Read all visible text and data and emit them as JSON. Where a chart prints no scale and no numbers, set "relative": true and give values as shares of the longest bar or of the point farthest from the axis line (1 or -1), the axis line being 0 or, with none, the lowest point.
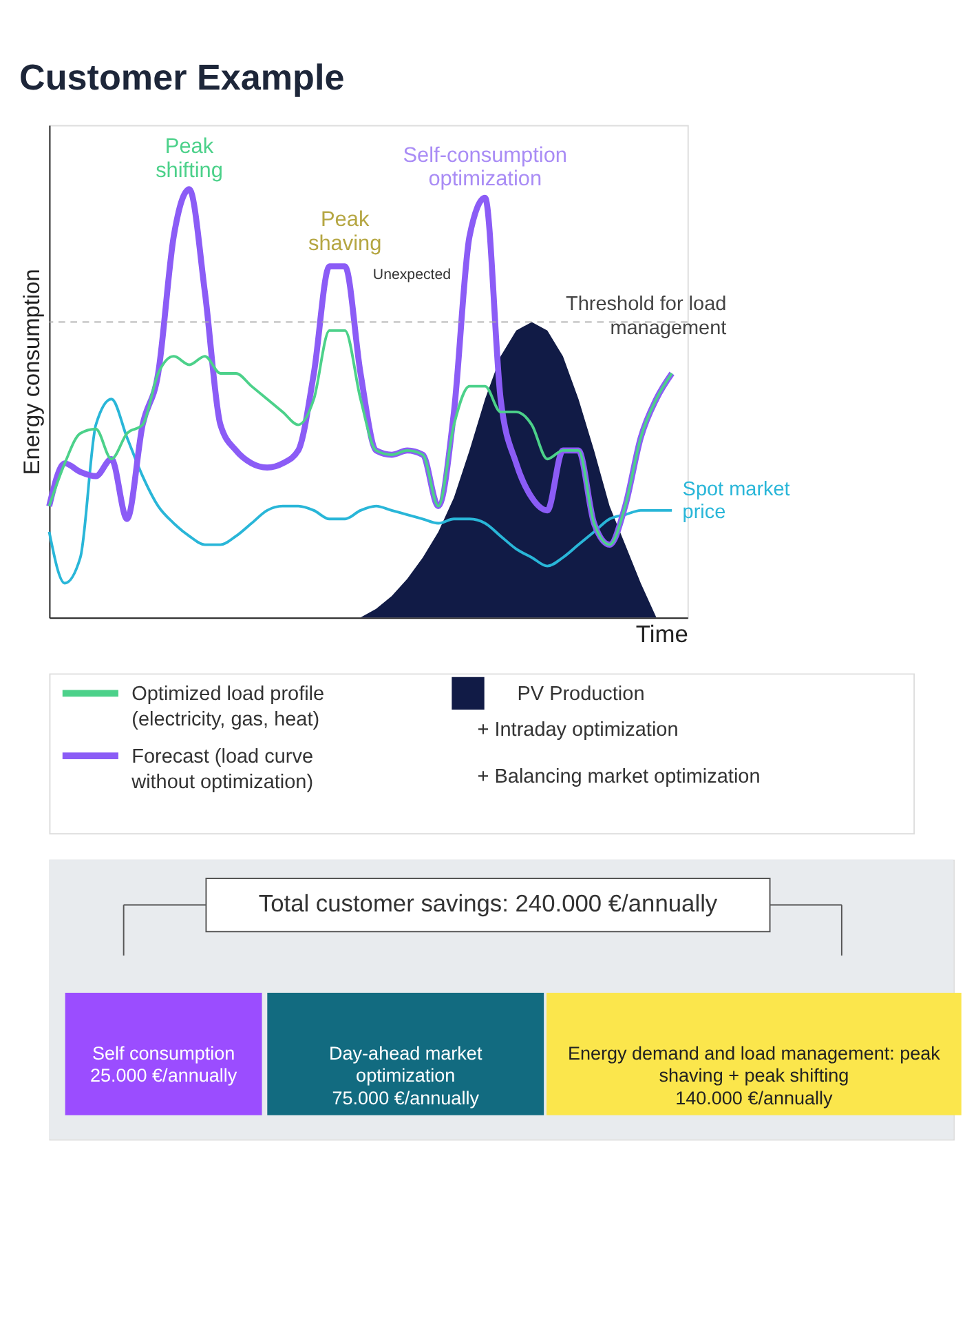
{
  "chart_data": [
    {
      "type": "line",
      "title": "Customer Example",
      "xlabel": "Time",
      "ylabel": "Energy consumption",
      "relative": true,
      "tick_labels": false,
      "grid": false,
      "legend": "bottom",
      "marker": "none",
      "line_style": "solid",
      "categories": [
        null,
        null,
        null,
        null,
        null,
        null,
        null,
        null,
        null,
        null,
        null,
        null,
        null,
        null,
        null,
        null,
        null,
        null,
        null,
        null,
        null,
        null,
        null,
        null,
        null,
        null,
        null,
        null,
        null,
        null,
        null,
        null,
        null,
        null,
        null,
        null,
        null,
        null,
        null,
        null,
        null
      ],
      "series": [
        {
          "name": "PV Production",
          "type": "area",
          "color": "#111b46",
          "values": [
            null,
            null,
            null,
            null,
            null,
            null,
            null,
            null,
            null,
            null,
            null,
            null,
            null,
            null,
            null,
            null,
            null,
            null,
            null,
            null,
            0,
            0.02,
            0.05,
            0.09,
            0.14,
            0.2,
            0.28,
            0.39,
            0.51,
            0.61,
            0.67,
            0.69,
            0.67,
            0.61,
            0.51,
            0.39,
            0.26,
            0.17,
            0.08,
            0,
            null
          ]
        },
        {
          "name": "Spot market price",
          "type": "line",
          "color": "#29b6d8",
          "values": [
            0.2,
            0.08,
            0.14,
            0.45,
            0.51,
            0.42,
            0.33,
            0.26,
            0.22,
            0.19,
            0.17,
            0.17,
            0.19,
            0.22,
            0.25,
            0.26,
            0.26,
            0.25,
            0.23,
            0.23,
            0.25,
            0.26,
            0.25,
            0.24,
            0.23,
            0.22,
            0.23,
            0.23,
            0.22,
            0.19,
            0.16,
            0.14,
            0.12,
            0.14,
            0.17,
            0.2,
            0.23,
            0.24,
            0.25,
            0.25,
            0.25
          ]
        },
        {
          "name": "Forecast (load curve without optimization)",
          "type": "line",
          "color": "#8b5cf6",
          "values": [
            0.26,
            0.36,
            0.34,
            0.33,
            0.37,
            0.23,
            0.45,
            0.57,
            0.89,
            1.0,
            0.76,
            0.45,
            0.39,
            0.36,
            0.35,
            0.36,
            0.39,
            0.57,
            0.82,
            0.82,
            0.57,
            0.39,
            0.38,
            0.39,
            0.38,
            0.26,
            0.48,
            0.89,
            0.98,
            0.51,
            0.36,
            0.28,
            0.25,
            0.39,
            0.39,
            0.22,
            0.17,
            0.26,
            0.42,
            0.51,
            0.57
          ]
        },
        {
          "name": "Optimized load profile (electricity, gas, heat)",
          "type": "line",
          "color": "#4cd18a",
          "values": [
            0.26,
            0.36,
            0.43,
            0.44,
            0.37,
            0.43,
            0.45,
            0.57,
            0.61,
            0.59,
            0.61,
            0.57,
            0.57,
            0.54,
            0.51,
            0.48,
            0.45,
            0.51,
            0.67,
            0.67,
            0.51,
            0.39,
            0.38,
            0.39,
            0.38,
            0.26,
            0.45,
            0.54,
            0.54,
            0.48,
            0.48,
            0.45,
            0.37,
            0.39,
            0.39,
            0.22,
            0.17,
            0.26,
            0.42,
            0.51,
            0.57
          ]
        }
      ],
      "ref_lines": [
        {
          "axis": "y",
          "value": 0.69,
          "label": "Threshold for load management",
          "color": "#aaaaaa",
          "line_style": "dashed"
        }
      ],
      "annotations": [
        "Peak shifting",
        "Peak shaving",
        "Unexpected",
        "Self-consumption optimization",
        "+ Intraday optimization",
        "+ Balancing market optimization"
      ]
    },
    {
      "type": "other",
      "title": "Total customer savings: 240.000 €/annually",
      "categories": [
        "Self consumption",
        "Day-ahead market optimization",
        "Energy demand and load management: peak shaving + peak shifting"
      ],
      "value_labels": [
        "25.000 €/annually",
        "75.000 €/annually",
        "140.000 €/annually"
      ],
      "colors": [
        "#9b4dff",
        "#126b80",
        "#fbe64c"
      ]
    }
  ]
}
